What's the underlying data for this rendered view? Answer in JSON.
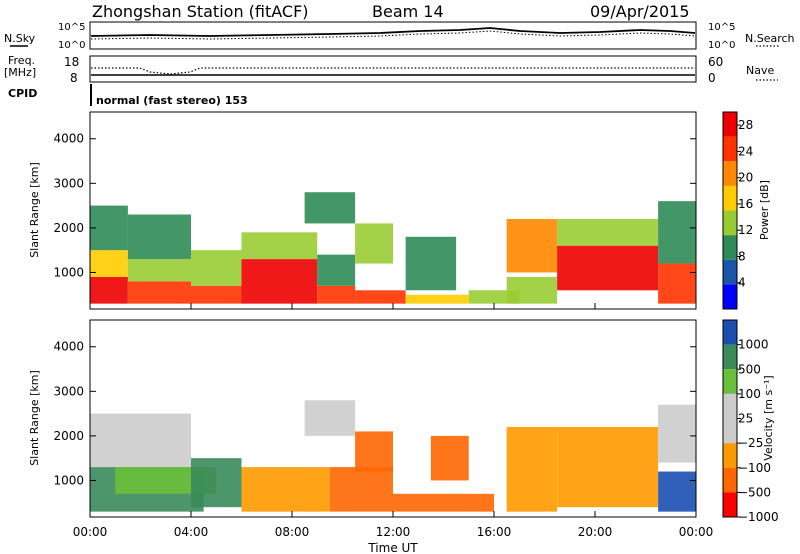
{
  "header": {
    "station": "Zhongshan Station (fitACF)",
    "beam": "Beam 14",
    "date": "09/Apr/2015"
  },
  "strip_labels": {
    "nsky": "N.Sky",
    "nsearch": "N.Search",
    "freq": "Freq.",
    "freq_unit": "[MHz]",
    "nave": "Nave",
    "cpid": "CPID",
    "cpid_text": "normal (fast stereo) 153",
    "noise_ticks_left": [
      "10^5",
      "10^0"
    ],
    "noise_ticks_right": [
      "10^5",
      "10^0"
    ],
    "freq_ticks": [
      "18",
      "8"
    ],
    "nave_ticks": [
      "60",
      "0"
    ]
  },
  "colors": {
    "power": [
      "#0000ff",
      "#1a55a8",
      "#2e8b57",
      "#99cc33",
      "#ffcc00",
      "#ff8800",
      "#ff3300",
      "#ee0000"
    ],
    "velocity": [
      "#1a4fb0",
      "#3a8a5a",
      "#6abf3a",
      "#cccccc",
      "#cccccc",
      "#ff9900",
      "#ff6600",
      "#ff0000"
    ]
  },
  "chart_data": [
    {
      "type": "heatmap",
      "name": "power",
      "xlabel": "Time UT",
      "ylabel": "Slant Range [km]",
      "xticks": [
        "00:00",
        "04:00",
        "08:00",
        "12:00",
        "16:00",
        "20:00",
        "00:00"
      ],
      "yticks": [
        "1000",
        "2000",
        "3000",
        "4000"
      ],
      "xlim": [
        0,
        24
      ],
      "ylim": [
        180,
        4600
      ],
      "colorbar": {
        "label": "Power [dB]",
        "ticks": [
          "4",
          "8",
          "12",
          "16",
          "20",
          "24",
          "28"
        ],
        "range": [
          0,
          30
        ]
      },
      "regions": [
        {
          "t0": 0.0,
          "t1": 1.5,
          "r0": 300,
          "r1": 900,
          "v": 27
        },
        {
          "t0": 0.0,
          "t1": 1.5,
          "r0": 900,
          "r1": 1500,
          "v": 15
        },
        {
          "t0": 0.0,
          "t1": 1.5,
          "r0": 1500,
          "r1": 2500,
          "v": 8
        },
        {
          "t0": 1.5,
          "t1": 4.0,
          "r0": 300,
          "r1": 800,
          "v": 25
        },
        {
          "t0": 1.5,
          "t1": 4.0,
          "r0": 800,
          "r1": 1300,
          "v": 14
        },
        {
          "t0": 1.5,
          "t1": 4.0,
          "r0": 1300,
          "r1": 2300,
          "v": 8
        },
        {
          "t0": 4.0,
          "t1": 6.0,
          "r0": 300,
          "r1": 700,
          "v": 26
        },
        {
          "t0": 4.0,
          "t1": 6.0,
          "r0": 700,
          "r1": 1500,
          "v": 13
        },
        {
          "t0": 6.0,
          "t1": 9.0,
          "r0": 300,
          "r1": 1300,
          "v": 28
        },
        {
          "t0": 6.0,
          "t1": 9.0,
          "r0": 1300,
          "r1": 1900,
          "v": 12
        },
        {
          "t0": 9.0,
          "t1": 10.5,
          "r0": 300,
          "r1": 700,
          "v": 24
        },
        {
          "t0": 9.0,
          "t1": 10.5,
          "r0": 700,
          "r1": 1400,
          "v": 11
        },
        {
          "t0": 8.5,
          "t1": 10.5,
          "r0": 2100,
          "r1": 2800,
          "v": 8
        },
        {
          "t0": 10.5,
          "t1": 12.5,
          "r0": 300,
          "r1": 600,
          "v": 23
        },
        {
          "t0": 10.5,
          "t1": 12.0,
          "r0": 1200,
          "r1": 2100,
          "v": 12
        },
        {
          "t0": 12.5,
          "t1": 15.0,
          "r0": 300,
          "r1": 500,
          "v": 18
        },
        {
          "t0": 12.5,
          "t1": 14.5,
          "r0": 600,
          "r1": 1800,
          "v": 10
        },
        {
          "t0": 15.0,
          "t1": 17.0,
          "r0": 300,
          "r1": 600,
          "v": 14
        },
        {
          "t0": 16.5,
          "t1": 18.5,
          "r0": 1000,
          "r1": 2200,
          "v": 22
        },
        {
          "t0": 16.5,
          "t1": 18.5,
          "r0": 300,
          "r1": 900,
          "v": 12
        },
        {
          "t0": 18.5,
          "t1": 22.5,
          "r0": 600,
          "r1": 1600,
          "v": 28
        },
        {
          "t0": 18.5,
          "t1": 22.5,
          "r0": 1600,
          "r1": 2200,
          "v": 12
        },
        {
          "t0": 22.5,
          "t1": 24.0,
          "r0": 300,
          "r1": 1200,
          "v": 24
        },
        {
          "t0": 22.5,
          "t1": 24.0,
          "r0": 1200,
          "r1": 2600,
          "v": 9
        }
      ]
    },
    {
      "type": "heatmap",
      "name": "velocity",
      "xlabel": "Time UT",
      "ylabel": "Slant Range [km]",
      "xticks": [
        "00:00",
        "04:00",
        "08:00",
        "12:00",
        "16:00",
        "20:00",
        "00:00"
      ],
      "yticks": [
        "1000",
        "2000",
        "3000",
        "4000"
      ],
      "xlim": [
        0,
        24
      ],
      "ylim": [
        180,
        4600
      ],
      "colorbar": {
        "label": "Velocity [m s⁻¹]",
        "ticks": [
          "1000",
          "500",
          "100",
          "25",
          "−25",
          "−100",
          "−500",
          "−1000"
        ]
      },
      "regions": [
        {
          "t0": 0.0,
          "t1": 4.5,
          "r0": 300,
          "r1": 1300,
          "c": 1
        },
        {
          "t0": 0.0,
          "t1": 4.0,
          "r0": 1300,
          "r1": 2500,
          "c": 3
        },
        {
          "t0": 1.0,
          "t1": 5.0,
          "r0": 700,
          "r1": 1300,
          "c": 2
        },
        {
          "t0": 4.0,
          "t1": 6.0,
          "r0": 400,
          "r1": 1500,
          "c": 1
        },
        {
          "t0": 6.0,
          "t1": 9.5,
          "r0": 300,
          "r1": 1300,
          "c": 5
        },
        {
          "t0": 9.5,
          "t1": 12.0,
          "r0": 300,
          "r1": 1300,
          "c": 6
        },
        {
          "t0": 8.5,
          "t1": 10.5,
          "r0": 2000,
          "r1": 2800,
          "c": 3
        },
        {
          "t0": 10.5,
          "t1": 12.0,
          "r0": 1200,
          "r1": 2100,
          "c": 6
        },
        {
          "t0": 12.0,
          "t1": 16.0,
          "r0": 300,
          "r1": 700,
          "c": 6
        },
        {
          "t0": 13.5,
          "t1": 15.0,
          "r0": 1000,
          "r1": 2000,
          "c": 6
        },
        {
          "t0": 16.5,
          "t1": 18.5,
          "r0": 300,
          "r1": 2200,
          "c": 5
        },
        {
          "t0": 18.5,
          "t1": 22.5,
          "r0": 400,
          "r1": 2200,
          "c": 5
        },
        {
          "t0": 22.5,
          "t1": 24.0,
          "r0": 300,
          "r1": 1200,
          "c": 0
        },
        {
          "t0": 22.5,
          "t1": 24.0,
          "r0": 1400,
          "r1": 2700,
          "c": 3
        }
      ]
    }
  ]
}
